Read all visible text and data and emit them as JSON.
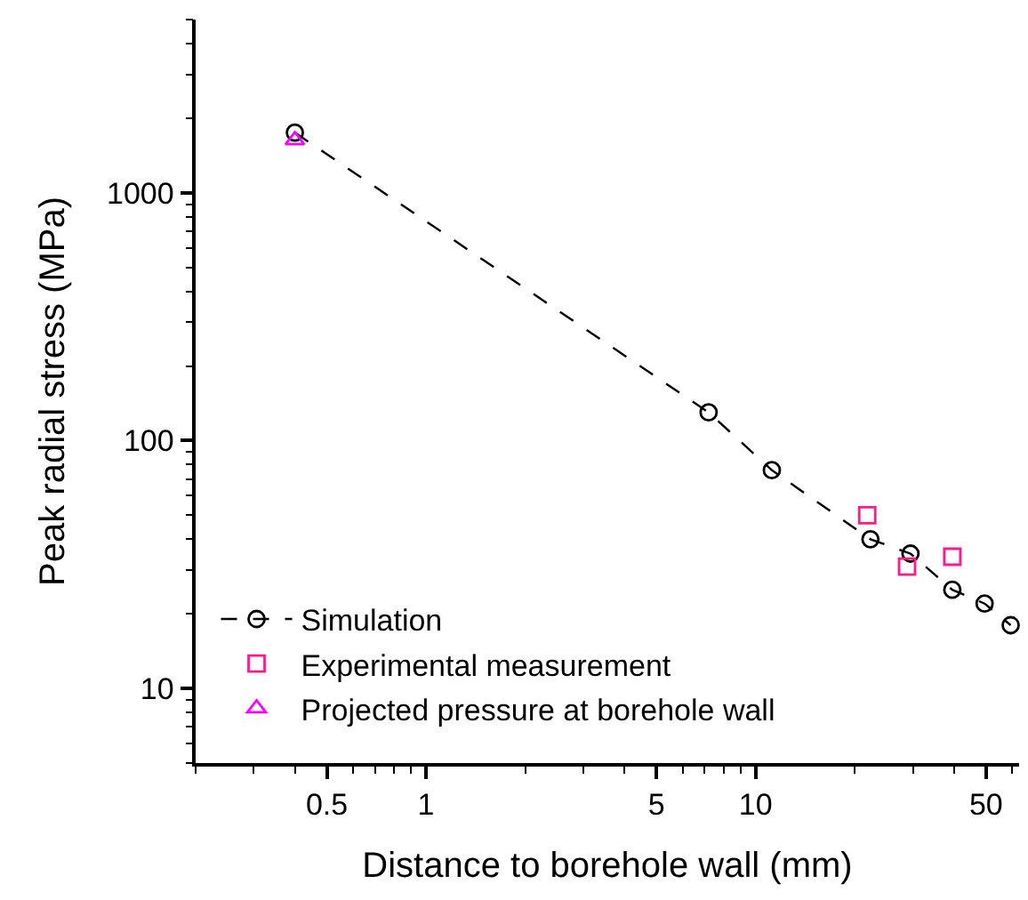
{
  "chart_data": {
    "type": "line",
    "xlabel": "Distance to borehole wall (mm)",
    "ylabel": "Peak radial stress (MPa)",
    "log": "xy",
    "xlim": [
      0.2,
      63
    ],
    "xticks": [
      0.5,
      1,
      5,
      10,
      50
    ],
    "ylim": [
      5,
      5000
    ],
    "yticks": [
      10,
      100,
      1000
    ],
    "grid": false,
    "legend": "bottom left",
    "series": [
      {
        "name": "Simulation",
        "color": "#000000",
        "marker": "circle",
        "line_style": "dashed",
        "x": [
          0.4,
          7.2,
          11.2,
          22.3,
          29.5,
          39.5,
          49.5,
          59.4
        ],
        "values": [
          1750,
          130,
          76,
          40,
          35,
          25,
          22,
          18
        ]
      },
      {
        "name": "Experimental measurement",
        "type": "scatter",
        "color": "#ff1a8c",
        "marker": "square",
        "x": [
          21.8,
          28.8,
          39.5
        ],
        "values": [
          50,
          31,
          34
        ]
      },
      {
        "name": "Projected pressure at borehole wall",
        "type": "scatter",
        "color": "#ff00ff",
        "marker": "triangle",
        "x": [
          0.4
        ],
        "values": [
          1630
        ]
      }
    ]
  }
}
